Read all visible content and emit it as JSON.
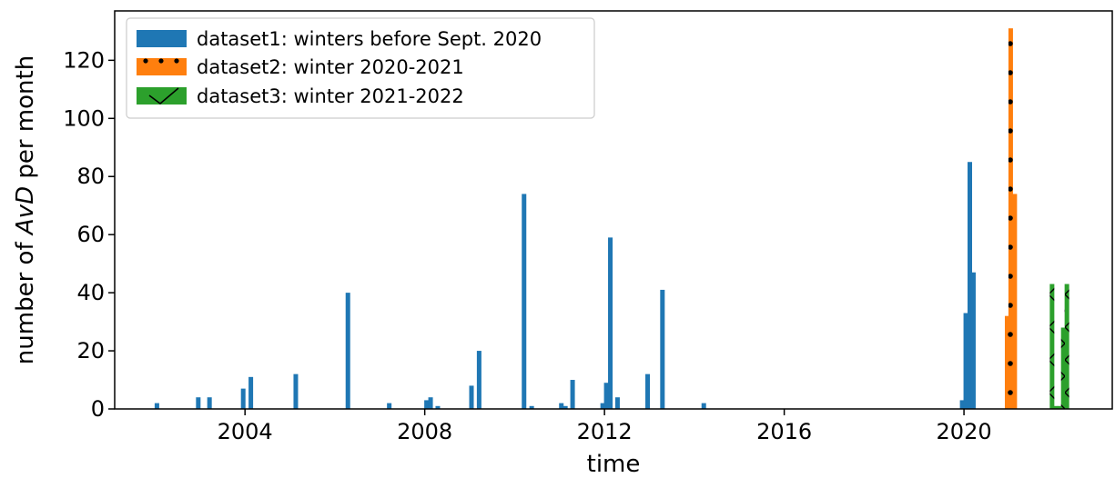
{
  "chart_data": {
    "type": "bar",
    "xlabel": "time",
    "ylabel_prefix": "number of ",
    "ylabel_italic": "AvD",
    "ylabel_suffix": " per month",
    "xlim": [
      2001.1,
      2023.3
    ],
    "ylim": [
      0,
      137
    ],
    "x_ticks": [
      2004,
      2008,
      2012,
      2016,
      2020
    ],
    "y_ticks": [
      0,
      20,
      40,
      60,
      80,
      100,
      120
    ],
    "bar_width_years": 0.083,
    "legend_position": "top-left",
    "grid": false,
    "series": [
      {
        "name": "dataset1: winters before Sept. 2020",
        "color": "#1f77b4",
        "pattern": "solid",
        "points": [
          {
            "x": 2002.04,
            "y": 2
          },
          {
            "x": 2002.96,
            "y": 4
          },
          {
            "x": 2003.21,
            "y": 4
          },
          {
            "x": 2003.96,
            "y": 7
          },
          {
            "x": 2004.13,
            "y": 11
          },
          {
            "x": 2005.13,
            "y": 12
          },
          {
            "x": 2006.29,
            "y": 40
          },
          {
            "x": 2007.21,
            "y": 2
          },
          {
            "x": 2008.04,
            "y": 3
          },
          {
            "x": 2008.13,
            "y": 4
          },
          {
            "x": 2008.29,
            "y": 1
          },
          {
            "x": 2009.04,
            "y": 8
          },
          {
            "x": 2009.21,
            "y": 20
          },
          {
            "x": 2010.21,
            "y": 74
          },
          {
            "x": 2010.38,
            "y": 1
          },
          {
            "x": 2011.04,
            "y": 2
          },
          {
            "x": 2011.13,
            "y": 1
          },
          {
            "x": 2011.29,
            "y": 10
          },
          {
            "x": 2011.96,
            "y": 2
          },
          {
            "x": 2012.04,
            "y": 9
          },
          {
            "x": 2012.13,
            "y": 59
          },
          {
            "x": 2012.29,
            "y": 4
          },
          {
            "x": 2012.96,
            "y": 12
          },
          {
            "x": 2013.29,
            "y": 41
          },
          {
            "x": 2014.21,
            "y": 2
          },
          {
            "x": 2019.96,
            "y": 3
          },
          {
            "x": 2020.04,
            "y": 33
          },
          {
            "x": 2020.13,
            "y": 85
          },
          {
            "x": 2020.21,
            "y": 47
          }
        ]
      },
      {
        "name": "dataset2: winter 2020-2021",
        "color": "#ff7f0e",
        "pattern": "dots",
        "points": [
          {
            "x": 2020.96,
            "y": 32
          },
          {
            "x": 2021.04,
            "y": 131
          },
          {
            "x": 2021.13,
            "y": 74
          }
        ]
      },
      {
        "name": "dataset3: winter 2021-2022",
        "color": "#2ca02c",
        "pattern": "hatch",
        "points": [
          {
            "x": 2021.96,
            "y": 43
          },
          {
            "x": 2022.04,
            "y": 1
          },
          {
            "x": 2022.13,
            "y": 1
          },
          {
            "x": 2022.21,
            "y": 28
          },
          {
            "x": 2022.29,
            "y": 43
          }
        ]
      }
    ]
  }
}
